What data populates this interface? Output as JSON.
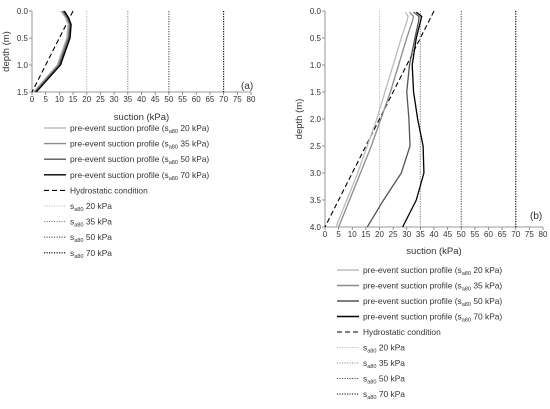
{
  "chart_data": [
    {
      "type": "line",
      "panel_label": "(a)",
      "xlabel": "suction (kPa)",
      "ylabel": "depth (m)",
      "xlim": [
        0,
        80
      ],
      "ylim": [
        1.5,
        0
      ],
      "y_axis_inverted": true,
      "xticks": [
        "0",
        "5",
        "10",
        "15",
        "20",
        "25",
        "30",
        "35",
        "40",
        "45",
        "50",
        "55",
        "60",
        "65",
        "70",
        "75",
        "80"
      ],
      "yticks": [
        "0.0",
        "0.5",
        "1.0",
        "1.5"
      ],
      "grid": false,
      "legend_position": "below",
      "series": [
        {
          "legend_pre": "pre-event suction profile (s",
          "legend_sub": "a80",
          "legend_post": " 20 kPa)",
          "color": "#bdbdbd",
          "style": "solid",
          "points": [
            [
              10.5,
              0.0
            ],
            [
              12.2,
              0.12
            ],
            [
              13.2,
              0.25
            ],
            [
              12.7,
              0.5
            ],
            [
              9.2,
              1.0
            ],
            [
              0.5,
              1.5
            ]
          ]
        },
        {
          "legend_pre": "pre-event suction profile (s",
          "legend_sub": "a80",
          "legend_post": " 35 kPa)",
          "color": "#8c8c8c",
          "style": "solid",
          "points": [
            [
              11.0,
              0.0
            ],
            [
              12.6,
              0.12
            ],
            [
              13.6,
              0.25
            ],
            [
              13.1,
              0.5
            ],
            [
              9.6,
              1.0
            ],
            [
              0.9,
              1.5
            ]
          ]
        },
        {
          "legend_pre": "pre-event suction profile (s",
          "legend_sub": "a80",
          "legend_post": " 50 kPa)",
          "color": "#555555",
          "style": "solid",
          "points": [
            [
              11.4,
              0.0
            ],
            [
              13.0,
              0.12
            ],
            [
              14.0,
              0.25
            ],
            [
              13.5,
              0.5
            ],
            [
              10.0,
              1.0
            ],
            [
              1.2,
              1.5
            ]
          ]
        },
        {
          "legend_pre": "pre-event suction profile (s",
          "legend_sub": "a80",
          "legend_post": " 70 kPa)",
          "color": "#000000",
          "style": "solid",
          "points": [
            [
              11.8,
              0.0
            ],
            [
              13.3,
              0.12
            ],
            [
              14.3,
              0.25
            ],
            [
              13.9,
              0.5
            ],
            [
              10.4,
              1.0
            ],
            [
              1.6,
              1.5
            ]
          ]
        },
        {
          "legend_pre": "Hydrostatic condition",
          "legend_sub": "",
          "legend_post": "",
          "color": "#000000",
          "style": "dashed",
          "points": [
            [
              15.0,
              0.0
            ],
            [
              0.0,
              1.5
            ]
          ]
        },
        {
          "legend_pre": "s",
          "legend_sub": "a80",
          "legend_post": " 20 kPa",
          "color": "#bdbdbd",
          "style": "dotted",
          "points": [
            [
              20,
              0.0
            ],
            [
              20,
              1.5
            ]
          ]
        },
        {
          "legend_pre": "s",
          "legend_sub": "a80",
          "legend_post": " 35 kPa",
          "color": "#8c8c8c",
          "style": "dotted",
          "points": [
            [
              35,
              0.0
            ],
            [
              35,
              1.5
            ]
          ]
        },
        {
          "legend_pre": "s",
          "legend_sub": "a80",
          "legend_post": " 50 kPa",
          "color": "#555555",
          "style": "dotted",
          "points": [
            [
              50,
              0.0
            ],
            [
              50,
              1.5
            ]
          ]
        },
        {
          "legend_pre": "s",
          "legend_sub": "a80",
          "legend_post": " 70 kPa",
          "color": "#000000",
          "style": "dotted",
          "points": [
            [
              70,
              0.0
            ],
            [
              70,
              1.5
            ]
          ]
        }
      ]
    },
    {
      "type": "line",
      "panel_label": "(b)",
      "xlabel": "suction (kPa)",
      "ylabel": "depth (m)",
      "xlim": [
        0,
        80
      ],
      "ylim": [
        4.0,
        0
      ],
      "y_axis_inverted": true,
      "xticks": [
        "0",
        "5",
        "10",
        "15",
        "20",
        "25",
        "30",
        "35",
        "40",
        "45",
        "50",
        "55",
        "60",
        "65",
        "70",
        "75",
        "80"
      ],
      "yticks": [
        "0.0",
        "0.5",
        "1.0",
        "1.5",
        "2.0",
        "2.5",
        "3.0",
        "3.5",
        "4.0"
      ],
      "grid": false,
      "legend_position": "below",
      "series": [
        {
          "legend_pre": "pre-event suction profile (s",
          "legend_sub": "a80",
          "legend_post": " 20 kPa)",
          "color": "#bdbdbd",
          "style": "solid",
          "points": [
            [
              29.5,
              0.02
            ],
            [
              30.5,
              0.1
            ],
            [
              30.0,
              0.2
            ],
            [
              28.0,
              0.5
            ],
            [
              25.0,
              1.0
            ],
            [
              22.0,
              1.5
            ],
            [
              19.0,
              2.0
            ],
            [
              15.5,
              2.5
            ],
            [
              12.0,
              3.0
            ],
            [
              8.0,
              3.5
            ],
            [
              4.0,
              4.0
            ]
          ]
        },
        {
          "legend_pre": "pre-event suction profile (s",
          "legend_sub": "a80",
          "legend_post": " 35 kPa)",
          "color": "#8c8c8c",
          "style": "solid",
          "points": [
            [
              31.0,
              0.02
            ],
            [
              32.5,
              0.1
            ],
            [
              32.0,
              0.2
            ],
            [
              30.0,
              0.5
            ],
            [
              27.0,
              1.0
            ],
            [
              24.0,
              1.5
            ],
            [
              20.5,
              2.0
            ],
            [
              17.0,
              2.5
            ],
            [
              13.0,
              3.0
            ],
            [
              9.0,
              3.5
            ],
            [
              5.0,
              4.0
            ]
          ]
        },
        {
          "legend_pre": "pre-event suction profile (s",
          "legend_sub": "a80",
          "legend_post": " 50 kPa)",
          "color": "#555555",
          "style": "solid",
          "points": [
            [
              32.5,
              0.02
            ],
            [
              34.5,
              0.1
            ],
            [
              34.3,
              0.2
            ],
            [
              33.0,
              0.5
            ],
            [
              31.0,
              1.0
            ],
            [
              30.0,
              1.5
            ],
            [
              30.8,
              2.0
            ],
            [
              31.2,
              2.5
            ],
            [
              28.0,
              3.0
            ],
            [
              21.5,
              3.5
            ],
            [
              15.5,
              4.0
            ]
          ]
        },
        {
          "legend_pre": "pre-event suction profile (s",
          "legend_sub": "a80",
          "legend_post": " 70 kPa)",
          "color": "#000000",
          "style": "solid",
          "points": [
            [
              33.5,
              0.02
            ],
            [
              35.5,
              0.1
            ],
            [
              35.0,
              0.2
            ],
            [
              33.5,
              0.5
            ],
            [
              32.0,
              1.0
            ],
            [
              32.5,
              1.5
            ],
            [
              34.0,
              2.0
            ],
            [
              36.0,
              2.5
            ],
            [
              36.3,
              3.0
            ],
            [
              33.5,
              3.5
            ],
            [
              28.5,
              4.0
            ]
          ]
        },
        {
          "legend_pre": "Hydrostatic condition",
          "legend_sub": "",
          "legend_post": "",
          "color": "#000000",
          "style": "dashed",
          "points": [
            [
              40.0,
              0.0
            ],
            [
              0.0,
              4.0
            ]
          ]
        },
        {
          "legend_pre": "s",
          "legend_sub": "a80",
          "legend_post": " 20 kPa",
          "color": "#bdbdbd",
          "style": "dotted",
          "points": [
            [
              20,
              0.0
            ],
            [
              20,
              4.0
            ]
          ]
        },
        {
          "legend_pre": "s",
          "legend_sub": "a80",
          "legend_post": " 35 kPa",
          "color": "#8c8c8c",
          "style": "dotted",
          "points": [
            [
              35,
              0.0
            ],
            [
              35,
              4.0
            ]
          ]
        },
        {
          "legend_pre": "s",
          "legend_sub": "a80",
          "legend_post": " 50 kPa",
          "color": "#555555",
          "style": "dotted",
          "points": [
            [
              50,
              0.0
            ],
            [
              50,
              4.0
            ]
          ]
        },
        {
          "legend_pre": "s",
          "legend_sub": "a80",
          "legend_post": " 70 kPa",
          "color": "#000000",
          "style": "dotted",
          "points": [
            [
              70,
              0.0
            ],
            [
              70,
              4.0
            ]
          ]
        }
      ]
    }
  ]
}
